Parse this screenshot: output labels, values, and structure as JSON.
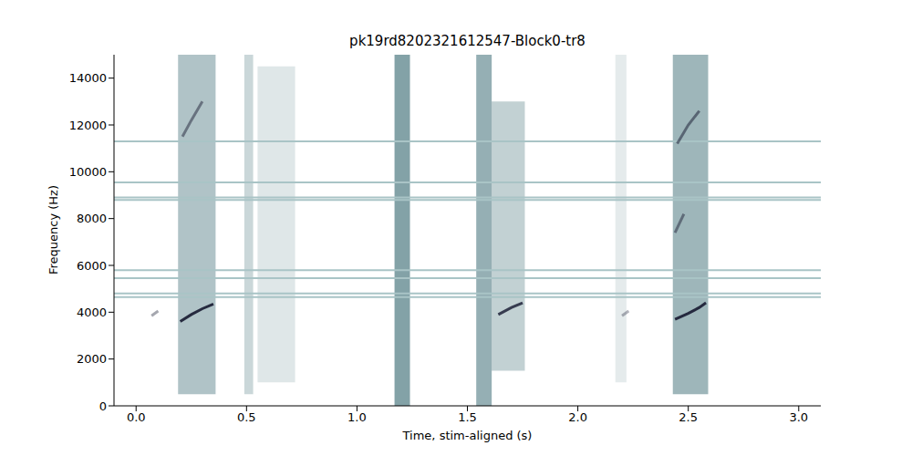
{
  "chart_data": {
    "type": "spectrogram",
    "title": "pk19rd8202321612547-Block0-tr8",
    "x_label": "Time, stim-aligned (s)",
    "y_label": "Frequency (Hz)",
    "xlim": [
      -0.1,
      3.1
    ],
    "xticks": [
      {
        "value": 0,
        "label": "0.0"
      },
      0.5,
      {
        "value": 1,
        "label": "1.0"
      },
      1.5,
      {
        "value": 2,
        "label": "2.0"
      },
      2.5,
      {
        "value": 3,
        "label": "3.0"
      }
    ],
    "ylim": [
      0,
      15000
    ],
    "yticks": [
      0,
      2000,
      4000,
      6000,
      8000,
      10000,
      12000,
      14000
    ],
    "grid": false,
    "noise_lines_hz": [
      11300,
      9550,
      8900,
      8800,
      5800,
      5450,
      4800,
      4650
    ],
    "events": [
      {
        "t_start": 0.19,
        "t_end": 0.36,
        "f_low": 500,
        "f_high": 15000,
        "intensity": 0.45
      },
      {
        "t_start": 0.49,
        "t_end": 0.53,
        "f_low": 500,
        "f_high": 15000,
        "intensity": 0.3
      },
      {
        "t_start": 0.55,
        "t_end": 0.72,
        "f_low": 1000,
        "f_high": 14500,
        "intensity": 0.18
      },
      {
        "t_start": 1.17,
        "t_end": 1.24,
        "f_low": 0,
        "f_high": 15000,
        "intensity": 0.7
      },
      {
        "t_start": 1.54,
        "t_end": 1.61,
        "f_low": 0,
        "f_high": 15000,
        "intensity": 0.6
      },
      {
        "t_start": 1.61,
        "t_end": 1.76,
        "f_low": 1500,
        "f_high": 13000,
        "intensity": 0.35
      },
      {
        "t_start": 2.17,
        "t_end": 2.22,
        "f_low": 1000,
        "f_high": 15000,
        "intensity": 0.15
      },
      {
        "t_start": 2.43,
        "t_end": 2.59,
        "f_low": 500,
        "f_high": 15000,
        "intensity": 0.55
      }
    ],
    "contours": [
      {
        "x": [
          0.2,
          0.25,
          0.3,
          0.35
        ],
        "y": [
          3600,
          3900,
          4150,
          4350
        ],
        "intensity": 0.95
      },
      {
        "x": [
          0.21,
          0.25,
          0.3
        ],
        "y": [
          11500,
          12200,
          13000
        ],
        "intensity": 0.5
      },
      {
        "x": [
          0.07,
          0.1
        ],
        "y": [
          3850,
          4050
        ],
        "intensity": 0.4
      },
      {
        "x": [
          1.64,
          1.7,
          1.75
        ],
        "y": [
          3900,
          4200,
          4400
        ],
        "intensity": 0.85
      },
      {
        "x": [
          2.2,
          2.23
        ],
        "y": [
          3850,
          4050
        ],
        "intensity": 0.35
      },
      {
        "x": [
          2.44,
          2.5,
          2.55,
          2.58
        ],
        "y": [
          3700,
          3950,
          4200,
          4400
        ],
        "intensity": 0.95
      },
      {
        "x": [
          2.44,
          2.48
        ],
        "y": [
          7400,
          8200
        ],
        "intensity": 0.5
      },
      {
        "x": [
          2.45,
          2.5,
          2.55
        ],
        "y": [
          11200,
          12000,
          12600
        ],
        "intensity": 0.55
      }
    ]
  }
}
